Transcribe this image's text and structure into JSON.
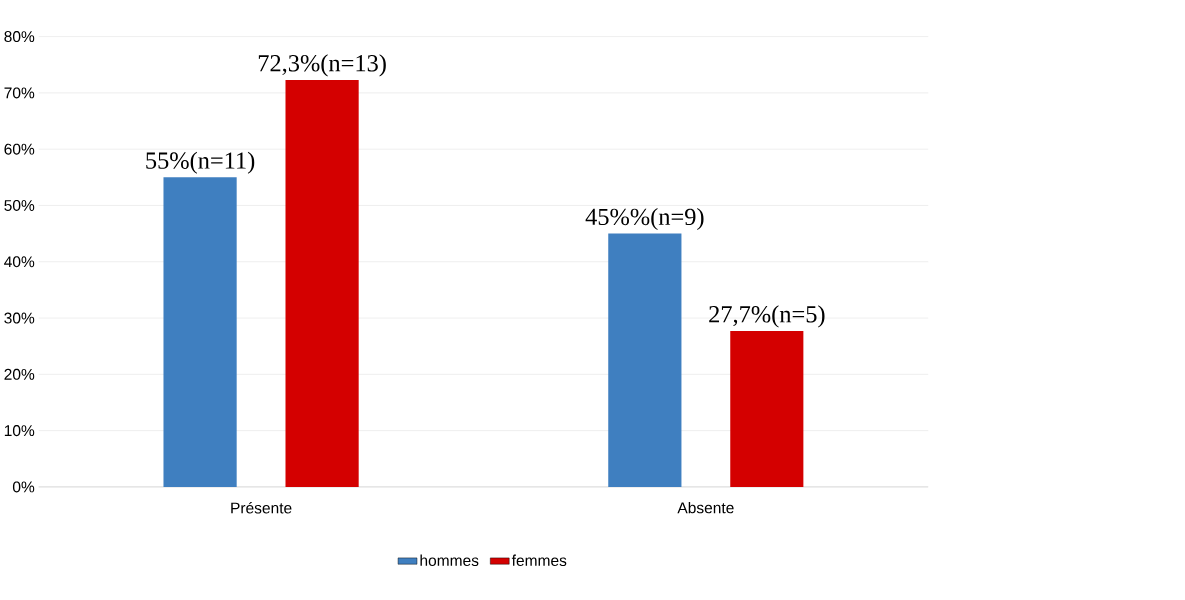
{
  "chart_data": {
    "type": "bar",
    "categories": [
      "Présente",
      "Absente"
    ],
    "series": [
      {
        "name": "hommes",
        "color": "#3f7fc0",
        "values": [
          55,
          45
        ],
        "value_labels": [
          "55%(n=11)",
          "45%%(n=9)"
        ]
      },
      {
        "name": "femmes",
        "color": "#d40000",
        "values": [
          72.3,
          27.7
        ],
        "value_labels": [
          "72,3%(n=13)",
          "27,7%(n=5)"
        ]
      }
    ],
    "ylim": [
      0,
      80
    ],
    "yticks": [
      {
        "value": 0,
        "label": "0%"
      },
      {
        "value": 10,
        "label": "10%"
      },
      {
        "value": 20,
        "label": "20%"
      },
      {
        "value": 30,
        "label": "30%"
      },
      {
        "value": 40,
        "label": "40%"
      },
      {
        "value": 50,
        "label": "50%"
      },
      {
        "value": 60,
        "label": "60%"
      },
      {
        "value": 70,
        "label": "70%"
      },
      {
        "value": 80,
        "label": "80%"
      }
    ],
    "grid": "y",
    "legend": "bottom"
  }
}
